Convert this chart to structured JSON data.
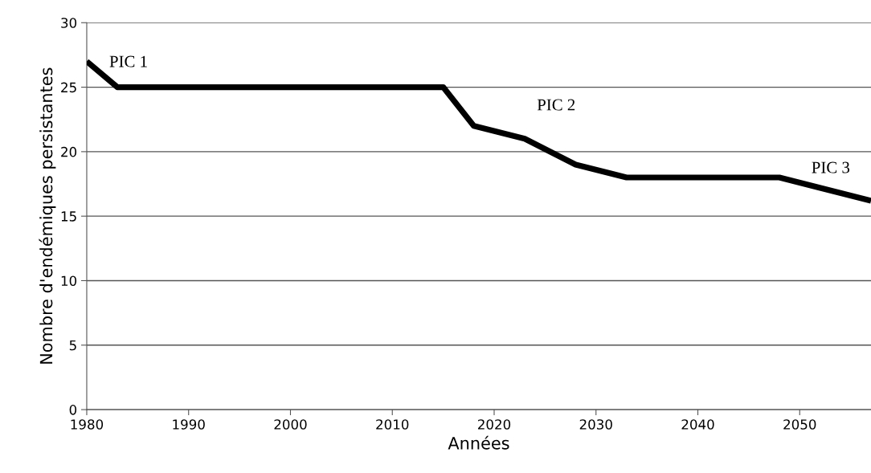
{
  "chart_data": {
    "type": "line",
    "xlabel": "Années",
    "ylabel": "Nombre d'endémiques persistantes",
    "x": [
      1980,
      1983,
      1999,
      2008,
      2015,
      2018,
      2023,
      2028,
      2033,
      2038,
      2048,
      2057
    ],
    "series": [
      {
        "color": "#000000",
        "values": [
          27,
          25,
          25,
          25,
          25,
          22,
          21,
          19,
          18,
          18,
          18,
          16.2
        ]
      }
    ],
    "xlim": [
      1980,
      2057
    ],
    "xticks": [
      1980,
      1990,
      2000,
      2010,
      2020,
      2030,
      2040,
      2050
    ],
    "ylim": [
      0,
      30
    ],
    "yticks": [
      0,
      5,
      10,
      15,
      20,
      25,
      30
    ],
    "grid": "y",
    "marker": "none",
    "line_style": "solid",
    "annotations": [
      "PIC 1",
      "PIC 2",
      "PIC 3"
    ]
  }
}
